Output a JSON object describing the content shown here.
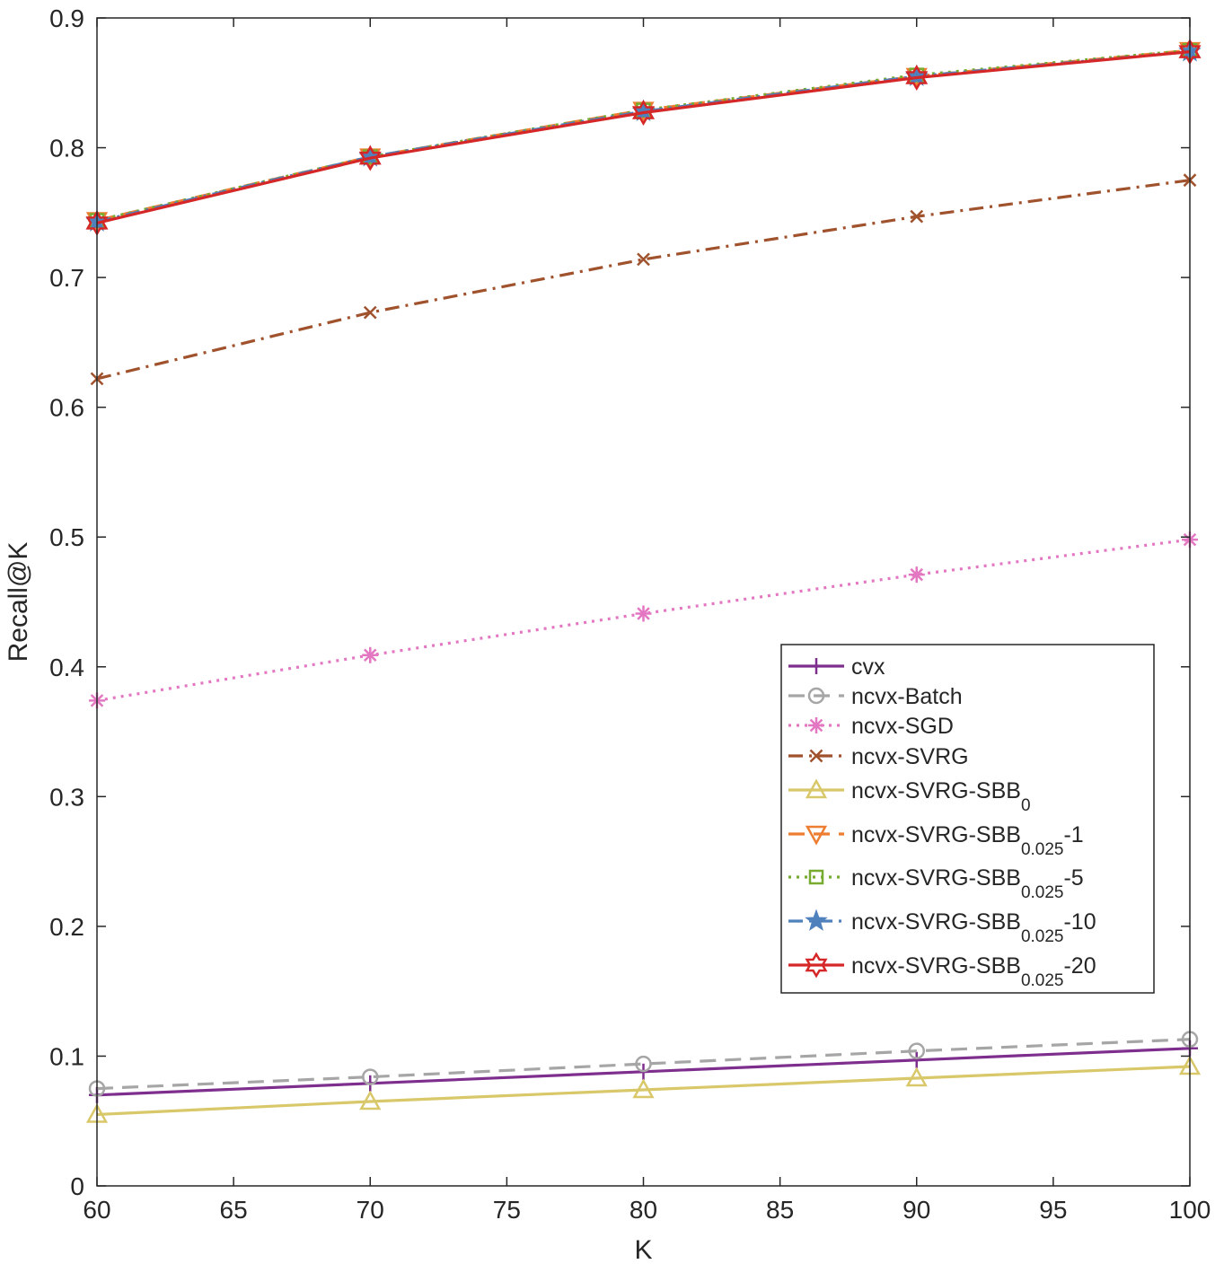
{
  "chart_data": {
    "type": "line",
    "title": "",
    "xlabel": "K",
    "ylabel": "Recall@K",
    "xlim": [
      60,
      100
    ],
    "ylim": [
      0,
      0.9
    ],
    "xticks": [
      60,
      65,
      70,
      75,
      80,
      85,
      90,
      95,
      100
    ],
    "xtick_labels": [
      "60",
      "65",
      "70",
      "75",
      "80",
      "85",
      "90",
      "95",
      "100"
    ],
    "yticks": [
      0,
      0.1,
      0.2,
      0.3,
      0.4,
      0.5,
      0.6,
      0.7,
      0.8,
      0.9
    ],
    "ytick_labels": [
      "0",
      "0.1",
      "0.2",
      "0.3",
      "0.4",
      "0.5",
      "0.6",
      "0.7",
      "0.8",
      "0.9"
    ],
    "grid": false,
    "legend_position": "right",
    "x": [
      60,
      70,
      80,
      90,
      100
    ],
    "series": [
      {
        "name": "cvx",
        "label_main": "cvx",
        "label_sub": "",
        "label_tail": "",
        "color": "#7E2F8E",
        "dash": "solid",
        "marker": "plus",
        "values": [
          0.07,
          0.079,
          0.088,
          0.097,
          0.106
        ]
      },
      {
        "name": "ncvx-Batch",
        "label_main": "ncvx-Batch",
        "label_sub": "",
        "label_tail": "",
        "color": "#A6A6A6",
        "dash": "dashed",
        "marker": "circle",
        "values": [
          0.075,
          0.084,
          0.094,
          0.104,
          0.113
        ]
      },
      {
        "name": "ncvx-SGD",
        "label_main": "ncvx-SGD",
        "label_sub": "",
        "label_tail": "",
        "color": "#E377C2",
        "dash": "dotted",
        "marker": "asterisk",
        "values": [
          0.374,
          0.409,
          0.441,
          0.471,
          0.498
        ]
      },
      {
        "name": "ncvx-SVRG",
        "label_main": "ncvx-SVRG",
        "label_sub": "",
        "label_tail": "",
        "color": "#A0522D",
        "dash": "dashdot",
        "marker": "x",
        "values": [
          0.622,
          0.673,
          0.714,
          0.747,
          0.775
        ]
      },
      {
        "name": "ncvx-SVRG-SBB0",
        "label_main": "ncvx-SVRG-SBB",
        "label_sub": "0",
        "label_tail": "",
        "color": "#D9C86A",
        "dash": "solid",
        "marker": "triangle-up",
        "values": [
          0.055,
          0.065,
          0.074,
          0.083,
          0.092
        ]
      },
      {
        "name": "ncvx-SVRG-SBB0.025-1",
        "label_main": "ncvx-SVRG-SBB",
        "label_sub": "0.025",
        "label_tail": "-1",
        "color": "#ED7D31",
        "dash": "dashed",
        "marker": "triangle-down",
        "values": [
          0.744,
          0.793,
          0.829,
          0.855,
          0.875
        ]
      },
      {
        "name": "ncvx-SVRG-SBB0.025-5",
        "label_main": "ncvx-SVRG-SBB",
        "label_sub": "0.025",
        "label_tail": "-5",
        "color": "#77AC30",
        "dash": "dotted",
        "marker": "square",
        "values": [
          0.744,
          0.793,
          0.829,
          0.856,
          0.875
        ]
      },
      {
        "name": "ncvx-SVRG-SBB0.025-10",
        "label_main": "ncvx-SVRG-SBB",
        "label_sub": "0.025",
        "label_tail": "-10",
        "color": "#4F81BD",
        "dash": "dashdot",
        "marker": "pentagram",
        "values": [
          0.743,
          0.793,
          0.828,
          0.855,
          0.874
        ]
      },
      {
        "name": "ncvx-SVRG-SBB0.025-20",
        "label_main": "ncvx-SVRG-SBB",
        "label_sub": "0.025",
        "label_tail": "-20",
        "color": "#D62728",
        "dash": "solid",
        "marker": "hexagram",
        "values": [
          0.742,
          0.792,
          0.827,
          0.854,
          0.874
        ]
      }
    ]
  }
}
